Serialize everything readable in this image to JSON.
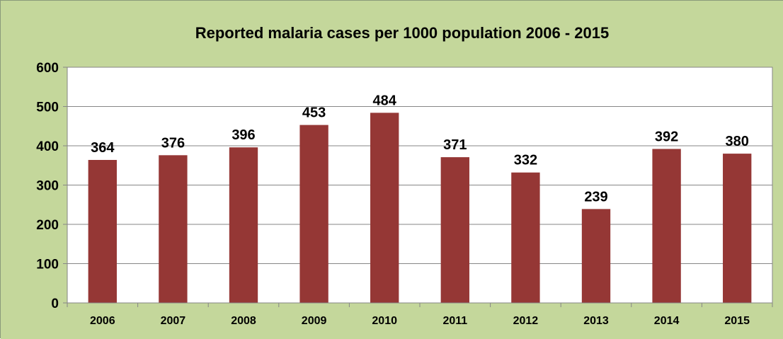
{
  "colors": {
    "chart_background": "#c4d79b",
    "plot_background": "#ffffff",
    "bar": "#953735",
    "gridline": "#868686"
  },
  "chart_data": {
    "type": "bar",
    "title": "Reported malaria cases per 1000 population 2006 - 2015",
    "xlabel": "",
    "ylabel": "",
    "categories": [
      "2006",
      "2007",
      "2008",
      "2009",
      "2010",
      "2011",
      "2012",
      "2013",
      "2014",
      "2015"
    ],
    "values": [
      364,
      376,
      396,
      453,
      484,
      371,
      332,
      239,
      392,
      380
    ],
    "ylim": [
      0,
      600
    ],
    "yticks": [
      "0",
      "100",
      "200",
      "300",
      "400",
      "500",
      "600"
    ],
    "grid": true,
    "legend": "none",
    "data_labels": true
  }
}
